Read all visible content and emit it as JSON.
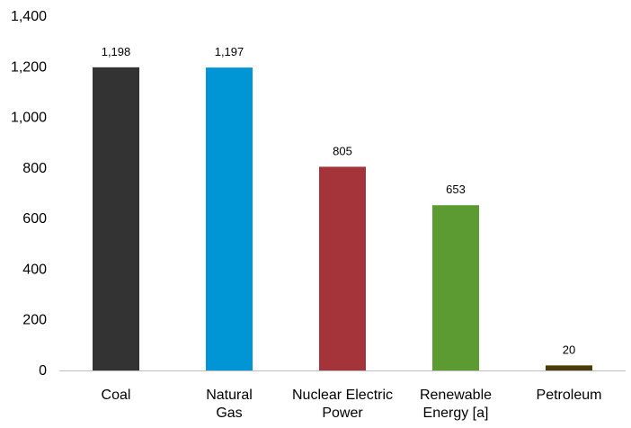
{
  "chart_data": {
    "type": "bar",
    "categories": [
      [
        "Coal"
      ],
      [
        "Natural",
        "Gas"
      ],
      [
        "Nuclear Electric",
        "Power"
      ],
      [
        "Renewable",
        "Energy [a]"
      ],
      [
        "Petroleum"
      ]
    ],
    "values": [
      1198,
      1197,
      805,
      653,
      20
    ],
    "data_labels": [
      "1,198",
      "1,197",
      "805",
      "653",
      "20"
    ],
    "colors": [
      "#333333",
      "#0096D6",
      "#A4343A",
      "#5C9A32",
      "#4A3B0A"
    ],
    "ylim": [
      0,
      1400
    ],
    "yticks": [
      0,
      200,
      400,
      600,
      800,
      1000,
      1200,
      1400
    ],
    "ytick_labels": [
      "0",
      "200",
      "400",
      "600",
      "800",
      "1,000",
      "1,200",
      "1,400"
    ],
    "grid": false,
    "legend": false
  }
}
